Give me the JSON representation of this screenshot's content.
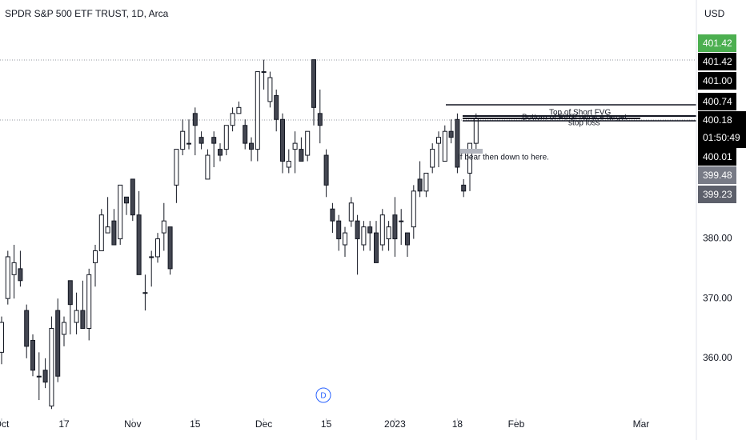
{
  "chart_data": {
    "type": "candlestick",
    "title": "SPDR S&P 500 ETF TRUST, 1D, Arca",
    "currency": "USD",
    "x": [
      "Oct 3",
      "Oct 4",
      "Oct 5",
      "Oct 6",
      "Oct 7",
      "Oct 10",
      "Oct 11",
      "Oct 12",
      "Oct 13",
      "Oct 14",
      "Oct 17",
      "Oct 18",
      "Oct 19",
      "Oct 20",
      "Oct 21",
      "Oct 24",
      "Oct 25",
      "Oct 26",
      "Oct 27",
      "Oct 28",
      "Oct 31",
      "Nov 1",
      "Nov 2",
      "Nov 3",
      "Nov 4",
      "Nov 7",
      "Nov 8",
      "Nov 9",
      "Nov 10",
      "Nov 11",
      "Nov 14",
      "Nov 15",
      "Nov 16",
      "Nov 17",
      "Nov 18",
      "Nov 21",
      "Nov 22",
      "Nov 23",
      "Nov 25",
      "Nov 28",
      "Nov 29",
      "Nov 30",
      "Dec 1",
      "Dec 2",
      "Dec 5",
      "Dec 6",
      "Dec 7",
      "Dec 8",
      "Dec 9",
      "Dec 12",
      "Dec 13",
      "Dec 14",
      "Dec 15",
      "Dec 16",
      "Dec 19",
      "Dec 20",
      "Dec 21",
      "Dec 22",
      "Dec 23",
      "Dec 27",
      "Dec 28",
      "Dec 29",
      "Dec 30",
      "Jan 3",
      "Jan 4",
      "Jan 5",
      "Jan 6",
      "Jan 9",
      "Jan 10",
      "Jan 11",
      "Jan 12",
      "Jan 13",
      "Jan 17",
      "Jan 18",
      "Jan 19",
      "Jan 20",
      "Jan 23"
    ],
    "open": [
      361,
      370,
      374,
      375,
      368,
      363,
      357,
      358,
      352,
      368,
      364,
      373,
      366,
      368,
      365,
      376,
      378,
      381,
      383,
      380,
      387,
      390,
      384,
      371,
      377,
      377,
      381,
      382,
      389,
      395,
      396,
      401,
      397,
      390,
      397,
      395,
      395,
      399,
      401,
      399,
      396,
      395,
      408,
      403,
      404,
      400,
      392,
      395,
      395,
      394,
      410,
      401,
      394,
      385,
      383,
      379,
      383,
      383,
      379,
      382,
      381,
      379,
      380,
      384,
      383,
      381,
      382,
      390,
      388,
      392,
      396,
      393,
      398,
      400,
      389,
      391,
      396
    ],
    "high": [
      367,
      378,
      379,
      378,
      369,
      364,
      361,
      360,
      367,
      370,
      367,
      373,
      371,
      373,
      375,
      379,
      385,
      387,
      385,
      389,
      387,
      390,
      388,
      374,
      378,
      381,
      386,
      382,
      395,
      400,
      400,
      402,
      398,
      395,
      398,
      396,
      399,
      402,
      403,
      400,
      397,
      408,
      410,
      408,
      405,
      401,
      395,
      398,
      397,
      398,
      410,
      405,
      395,
      386,
      384,
      382,
      387,
      384,
      383,
      383,
      383,
      385,
      383,
      387,
      385,
      381,
      389,
      393,
      391,
      396,
      398,
      399,
      400,
      401,
      390,
      396,
      401
    ],
    "low": [
      359,
      369,
      370,
      372,
      360,
      357,
      353,
      355,
      351.5,
      356,
      362,
      364,
      364,
      365,
      363,
      372,
      378,
      381,
      379,
      379,
      384,
      383,
      374,
      368,
      372,
      376,
      378,
      374,
      386,
      394,
      395,
      394,
      395,
      390,
      392,
      393,
      394,
      398,
      401,
      395,
      393,
      393,
      405,
      402,
      398,
      391,
      391,
      391,
      393,
      393,
      399,
      396,
      387,
      381,
      378,
      377,
      382,
      374,
      378,
      378,
      376,
      378,
      378,
      377,
      379,
      377,
      380,
      387,
      387,
      391,
      392,
      393,
      396,
      391,
      387,
      388,
      395
    ],
    "close": [
      366,
      377,
      376,
      373,
      362,
      358,
      357,
      356,
      365,
      357,
      366,
      369,
      368,
      365,
      374,
      378,
      384,
      382,
      379,
      389,
      386,
      384,
      374,
      371,
      377,
      380,
      383,
      375,
      395,
      398,
      396,
      399,
      396,
      394,
      396,
      394,
      399,
      401,
      402,
      396,
      395,
      408,
      408,
      407,
      400,
      393,
      393,
      396,
      393,
      398,
      402,
      399,
      389,
      383,
      380,
      381,
      386,
      380,
      382,
      381,
      376,
      384,
      382,
      380,
      383,
      379,
      388,
      388,
      391,
      395,
      397,
      398,
      397,
      392,
      388,
      396,
      400.18
    ],
    "up_color": "#ffffff",
    "down_color": "#434651",
    "outline_color": "#131722",
    "ylim": [
      351,
      420
    ],
    "yticks": [
      {
        "value": 360,
        "label": "360.00"
      },
      {
        "value": 370,
        "label": "370.00"
      },
      {
        "value": 380,
        "label": "380.00"
      }
    ],
    "xticks": [
      {
        "value": "Oct 3",
        "label": "Oct"
      },
      {
        "value": "Oct 17",
        "label": "17"
      },
      {
        "value": "Nov 1",
        "label": "Nov"
      },
      {
        "value": "Nov 15",
        "label": "15"
      },
      {
        "value": "Dec 1",
        "label": "Dec"
      },
      {
        "value": "Dec 15",
        "label": "15"
      },
      {
        "value": "Jan 3",
        "label": "2023"
      },
      {
        "value": "Jan 18",
        "label": "18"
      },
      {
        "value": "Feb 1",
        "label": "Feb"
      },
      {
        "value": "Mar 1",
        "label": "Mar"
      }
    ],
    "price_labels": [
      {
        "value": 401.42,
        "label": "401.42",
        "color": "#4caf50"
      },
      {
        "value": 401.42,
        "label": "401.42",
        "color": "#000000"
      },
      {
        "value": 401.0,
        "label": "401.00",
        "color": "#000000"
      },
      {
        "value": 400.74,
        "label": "400.74",
        "color": "#000000"
      },
      {
        "value": 400.18,
        "label": "400.18",
        "color": "#000000"
      },
      {
        "value": 400.01,
        "label": "400.01",
        "color": "#000000"
      },
      {
        "value": 399.48,
        "label": "399.48",
        "color": "#787b86"
      },
      {
        "value": 399.23,
        "label": "399.23",
        "color": "#5d606b"
      }
    ],
    "countdown": "01:50:49",
    "annotations": [
      "Top of Short FVG",
      "Bottom of FVG/ retrace target",
      "stop loss",
      "If bear then down to here."
    ],
    "interval_button": "D"
  }
}
